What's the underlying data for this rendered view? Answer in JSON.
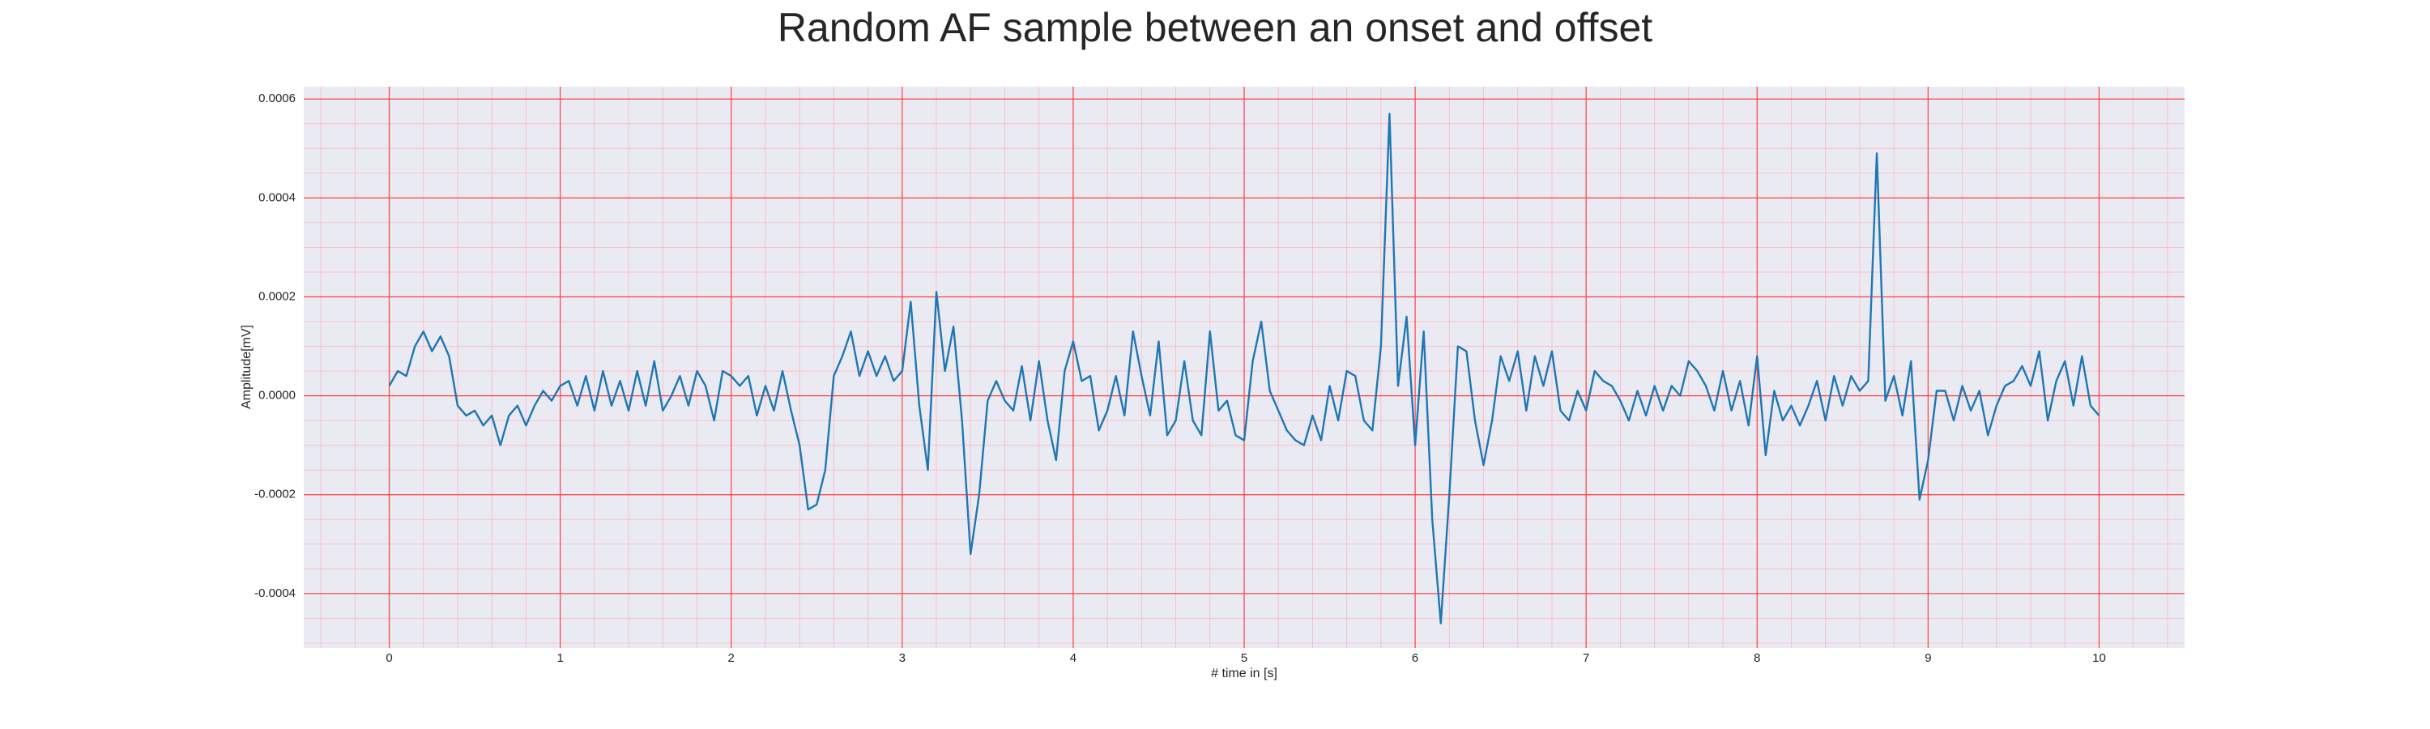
{
  "chart_data": {
    "type": "line",
    "title": "Random AF sample between an onset and offset",
    "xlabel": "# time in [s]",
    "ylabel": "Amplitude[mV]",
    "xlim": [
      -0.5,
      10.5
    ],
    "ylim": [
      -0.00051,
      0.000625
    ],
    "xticks": [
      0,
      1,
      2,
      3,
      4,
      5,
      6,
      7,
      8,
      9,
      10
    ],
    "yticks": [
      -0.0004,
      -0.0002,
      {
        "value": 0,
        "label": "0.0000"
      },
      0.0002,
      0.0004,
      0.0006
    ],
    "xminor": [
      -0.4,
      -0.2,
      0.2,
      0.4,
      0.6,
      0.8,
      1.2,
      1.4,
      1.6,
      1.8,
      2.2,
      2.4,
      2.6,
      2.8,
      3.2,
      3.4,
      3.6,
      3.8,
      4.2,
      4.4,
      4.6,
      4.8,
      5.2,
      5.4,
      5.6,
      5.8,
      6.2,
      6.4,
      6.6,
      6.8,
      7.2,
      7.4,
      7.6,
      7.8,
      8.2,
      8.4,
      8.6,
      8.8,
      9.2,
      9.4,
      9.6,
      9.8,
      10.2,
      10.4
    ],
    "yminor": [
      -0.0005,
      -0.00045,
      -0.00035,
      -0.0003,
      -0.00025,
      -0.00015,
      -0.0001,
      -5e-05,
      5e-05,
      0.0001,
      0.00015,
      0.00025,
      0.0003,
      0.00035,
      0.00045,
      0.0005,
      0.00055
    ],
    "grid": true,
    "minor_grid": true,
    "x": [
      0,
      0.05,
      0.1,
      0.15,
      0.2,
      0.25,
      0.3,
      0.35,
      0.4,
      0.45,
      0.5,
      0.55,
      0.6,
      0.65,
      0.7,
      0.75,
      0.8,
      0.85,
      0.9,
      0.95,
      1,
      1.05,
      1.1,
      1.15,
      1.2,
      1.25,
      1.3,
      1.35,
      1.4,
      1.45,
      1.5,
      1.55,
      1.6,
      1.65,
      1.7,
      1.75,
      1.8,
      1.85,
      1.9,
      1.95,
      2,
      2.05,
      2.1,
      2.15,
      2.2,
      2.25,
      2.3,
      2.35,
      2.4,
      2.45,
      2.5,
      2.55,
      2.6,
      2.65,
      2.7,
      2.75,
      2.8,
      2.85,
      2.9,
      2.95,
      3,
      3.05,
      3.1,
      3.15,
      3.2,
      3.25,
      3.3,
      3.35,
      3.4,
      3.45,
      3.5,
      3.55,
      3.6,
      3.65,
      3.7,
      3.75,
      3.8,
      3.85,
      3.9,
      3.95,
      4,
      4.05,
      4.1,
      4.15,
      4.2,
      4.25,
      4.3,
      4.35,
      4.4,
      4.45,
      4.5,
      4.55,
      4.6,
      4.65,
      4.7,
      4.75,
      4.8,
      4.85,
      4.9,
      4.95,
      5,
      5.05,
      5.1,
      5.15,
      5.2,
      5.25,
      5.3,
      5.35,
      5.4,
      5.45,
      5.5,
      5.55,
      5.6,
      5.65,
      5.7,
      5.75,
      5.8,
      5.85,
      5.9,
      5.95,
      6,
      6.05,
      6.1,
      6.15,
      6.2,
      6.25,
      6.3,
      6.35,
      6.4,
      6.45,
      6.5,
      6.55,
      6.6,
      6.65,
      6.7,
      6.75,
      6.8,
      6.85,
      6.9,
      6.95,
      7,
      7.05,
      7.1,
      7.15,
      7.2,
      7.25,
      7.3,
      7.35,
      7.4,
      7.45,
      7.5,
      7.55,
      7.6,
      7.65,
      7.7,
      7.75,
      7.8,
      7.85,
      7.9,
      7.95,
      8,
      8.05,
      8.1,
      8.15,
      8.2,
      8.25,
      8.3,
      8.35,
      8.4,
      8.45,
      8.5,
      8.55,
      8.6,
      8.65,
      8.7,
      8.75,
      8.8,
      8.85,
      8.9,
      8.95,
      9,
      9.05,
      9.1,
      9.15,
      9.2,
      9.25,
      9.3,
      9.35,
      9.4,
      9.45,
      9.5,
      9.55,
      9.6,
      9.65,
      9.7,
      9.75,
      9.8,
      9.85,
      9.9,
      9.95,
      10
    ],
    "series": [
      {
        "color": "#1f77b4",
        "values": [
          2e-05,
          5e-05,
          4e-05,
          0.0001,
          0.00013,
          9e-05,
          0.00012,
          8e-05,
          -2e-05,
          -4e-05,
          -3e-05,
          -6e-05,
          -4e-05,
          -0.0001,
          -4e-05,
          -2e-05,
          -6e-05,
          -2e-05,
          1e-05,
          -1e-05,
          2e-05,
          3e-05,
          -2e-05,
          4e-05,
          -3e-05,
          5e-05,
          -2e-05,
          3e-05,
          -3e-05,
          5e-05,
          -2e-05,
          7e-05,
          -3e-05,
          0,
          4e-05,
          -2e-05,
          5e-05,
          2e-05,
          -5e-05,
          5e-05,
          4e-05,
          2e-05,
          4e-05,
          -4e-05,
          2e-05,
          -3e-05,
          5e-05,
          -3e-05,
          -0.0001,
          -0.00023,
          -0.00022,
          -0.00015,
          4e-05,
          8e-05,
          0.00013,
          4e-05,
          9e-05,
          4e-05,
          8e-05,
          3e-05,
          5e-05,
          0.00019,
          -2e-05,
          -0.00015,
          0.00021,
          5e-05,
          0.00014,
          -5e-05,
          -0.00032,
          -0.0002,
          -1e-05,
          3e-05,
          -1e-05,
          -3e-05,
          6e-05,
          -5e-05,
          7e-05,
          -5e-05,
          -0.00013,
          5e-05,
          0.00011,
          3e-05,
          4e-05,
          -7e-05,
          -3e-05,
          4e-05,
          -4e-05,
          0.00013,
          4e-05,
          -4e-05,
          0.00011,
          -8e-05,
          -5e-05,
          7e-05,
          -5e-05,
          -8e-05,
          0.00013,
          -3e-05,
          -1e-05,
          -8e-05,
          -9e-05,
          7e-05,
          0.00015,
          1e-05,
          -3e-05,
          -7e-05,
          -9e-05,
          -0.0001,
          -4e-05,
          -9e-05,
          2e-05,
          -5e-05,
          5e-05,
          4e-05,
          -5e-05,
          -7e-05,
          0.0001,
          0.00057,
          2e-05,
          0.00016,
          -0.0001,
          0.00013,
          -0.00025,
          -0.00046,
          -0.0002,
          0.0001,
          9e-05,
          -5e-05,
          -0.00014,
          -5e-05,
          8e-05,
          3e-05,
          9e-05,
          -3e-05,
          8e-05,
          2e-05,
          9e-05,
          -3e-05,
          -5e-05,
          1e-05,
          -3e-05,
          5e-05,
          3e-05,
          2e-05,
          -1e-05,
          -5e-05,
          1e-05,
          -4e-05,
          2e-05,
          -3e-05,
          2e-05,
          0,
          7e-05,
          5e-05,
          2e-05,
          -3e-05,
          5e-05,
          -3e-05,
          3e-05,
          -6e-05,
          8e-05,
          -0.00012,
          1e-05,
          -5e-05,
          -2e-05,
          -6e-05,
          -2e-05,
          3e-05,
          -5e-05,
          4e-05,
          -2e-05,
          4e-05,
          1e-05,
          3e-05,
          0.00049,
          -1e-05,
          4e-05,
          -4e-05,
          7e-05,
          -0.00021,
          -0.00013,
          1e-05,
          1e-05,
          -5e-05,
          2e-05,
          -3e-05,
          1e-05,
          -8e-05,
          -2e-05,
          2e-05,
          3e-05,
          6e-05,
          2e-05,
          9e-05,
          -5e-05,
          3e-05,
          7e-05,
          -2e-05,
          8e-05,
          -2e-05,
          -4e-05
        ]
      }
    ]
  }
}
